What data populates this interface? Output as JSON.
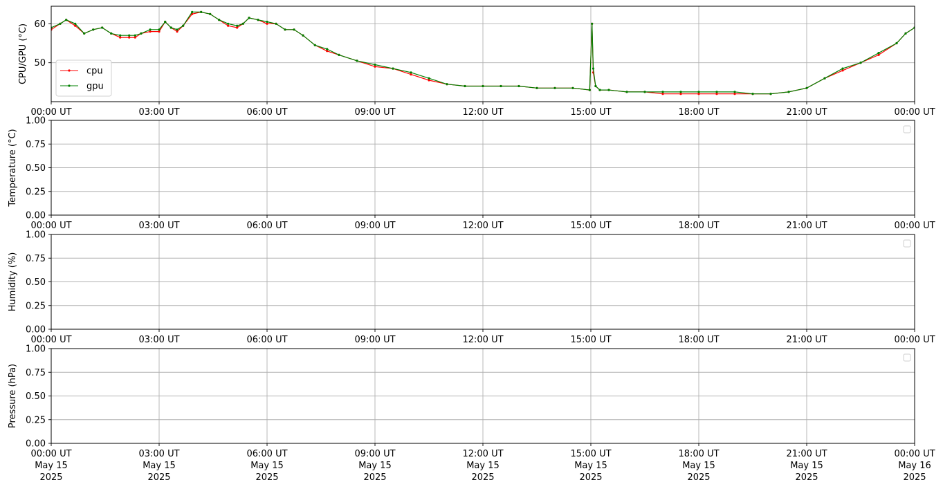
{
  "chart_data": [
    {
      "type": "line",
      "ylabel": "CPU/GPU (°C)",
      "xlim": [
        "00:00",
        "24:00"
      ],
      "ylim": [
        40,
        64.5
      ],
      "yticks": [
        50,
        60
      ],
      "x_tick_labels": [
        "00:00 UT",
        "03:00 UT",
        "06:00 UT",
        "09:00 UT",
        "12:00 UT",
        "15:00 UT",
        "18:00 UT",
        "21:00 UT",
        "00:00 UT"
      ],
      "grid": true,
      "legend": "lower-left",
      "series": [
        {
          "name": "cpu",
          "color": "#ff0000",
          "x": [
            "00:00",
            "00:15",
            "00:25",
            "00:40",
            "00:55",
            "01:10",
            "01:25",
            "01:40",
            "01:55",
            "02:10",
            "02:20",
            "02:30",
            "02:45",
            "03:00",
            "03:10",
            "03:20",
            "03:30",
            "03:40",
            "03:55",
            "04:10",
            "04:25",
            "04:40",
            "04:55",
            "05:10",
            "05:20",
            "05:30",
            "05:45",
            "06:00",
            "06:15",
            "06:30",
            "06:45",
            "07:00",
            "07:20",
            "07:40",
            "08:00",
            "08:30",
            "09:00",
            "09:30",
            "10:00",
            "10:30",
            "11:00",
            "11:30",
            "12:00",
            "12:30",
            "13:00",
            "13:30",
            "14:00",
            "14:30",
            "14:58",
            "15:02",
            "15:04",
            "15:08",
            "15:15",
            "15:30",
            "16:00",
            "16:30",
            "17:00",
            "17:30",
            "18:00",
            "18:30",
            "19:00",
            "19:30",
            "20:00",
            "20:30",
            "21:00",
            "21:30",
            "22:00",
            "22:30",
            "23:00",
            "23:30",
            "23:45",
            "24:00"
          ],
          "y": [
            58.5,
            60,
            61,
            59.5,
            57.5,
            58.5,
            59,
            57.5,
            56.5,
            56.5,
            56.5,
            57.5,
            58,
            58,
            60.5,
            59,
            58,
            59.5,
            62.5,
            63,
            62.5,
            61,
            59.5,
            59,
            60,
            61.5,
            61,
            60,
            60,
            58.5,
            58.5,
            57,
            54.5,
            53,
            52,
            50.5,
            49,
            48.5,
            47,
            45.5,
            44.5,
            44,
            44,
            44,
            44,
            43.5,
            43.5,
            43.5,
            43,
            60,
            47.5,
            44,
            43,
            43,
            42.5,
            42.5,
            42,
            42,
            42,
            42,
            42,
            42,
            42,
            42.5,
            43.5,
            46,
            48,
            50,
            52,
            55,
            57.5,
            59
          ]
        },
        {
          "name": "gpu",
          "color": "#008000",
          "x": [
            "00:00",
            "00:15",
            "00:25",
            "00:40",
            "00:55",
            "01:10",
            "01:25",
            "01:40",
            "01:55",
            "02:10",
            "02:20",
            "02:30",
            "02:45",
            "03:00",
            "03:10",
            "03:20",
            "03:30",
            "03:40",
            "03:55",
            "04:10",
            "04:25",
            "04:40",
            "04:55",
            "05:10",
            "05:20",
            "05:30",
            "05:45",
            "06:00",
            "06:15",
            "06:30",
            "06:45",
            "07:00",
            "07:20",
            "07:40",
            "08:00",
            "08:30",
            "09:00",
            "09:30",
            "10:00",
            "10:30",
            "11:00",
            "11:30",
            "12:00",
            "12:30",
            "13:00",
            "13:30",
            "14:00",
            "14:30",
            "14:58",
            "15:02",
            "15:04",
            "15:08",
            "15:15",
            "15:30",
            "16:00",
            "16:30",
            "17:00",
            "17:30",
            "18:00",
            "18:30",
            "19:00",
            "19:30",
            "20:00",
            "20:30",
            "21:00",
            "21:30",
            "22:00",
            "22:30",
            "23:00",
            "23:30",
            "23:45",
            "24:00"
          ],
          "y": [
            59,
            60,
            61,
            60,
            57.5,
            58.5,
            59,
            57.5,
            57,
            57,
            57,
            57.5,
            58.5,
            58.5,
            60.5,
            59,
            58.5,
            59.5,
            63,
            63,
            62.5,
            61,
            60,
            59.5,
            60,
            61.5,
            61,
            60.5,
            60,
            58.5,
            58.5,
            57,
            54.5,
            53.5,
            52,
            50.5,
            49.5,
            48.5,
            47.5,
            46,
            44.5,
            44,
            44,
            44,
            44,
            43.5,
            43.5,
            43.5,
            43,
            60,
            48.5,
            44,
            43,
            43,
            42.5,
            42.5,
            42.5,
            42.5,
            42.5,
            42.5,
            42.5,
            42,
            42,
            42.5,
            43.5,
            46,
            48.5,
            50,
            52.5,
            55,
            57.5,
            59
          ]
        }
      ]
    },
    {
      "type": "line",
      "ylabel": "Temperature (°C)",
      "ylim": [
        0,
        1
      ],
      "yticks": [
        "0.00",
        "0.25",
        "0.50",
        "0.75",
        "1.00"
      ],
      "x_tick_labels": [
        "00:00 UT",
        "03:00 UT",
        "06:00 UT",
        "09:00 UT",
        "12:00 UT",
        "15:00 UT",
        "18:00 UT",
        "21:00 UT",
        "00:00 UT"
      ],
      "grid": true,
      "legend": "top-right",
      "series": []
    },
    {
      "type": "line",
      "ylabel": "Humidity (%)",
      "ylim": [
        0,
        1
      ],
      "yticks": [
        "0.00",
        "0.25",
        "0.50",
        "0.75",
        "1.00"
      ],
      "x_tick_labels": [
        "00:00 UT",
        "03:00 UT",
        "06:00 UT",
        "09:00 UT",
        "12:00 UT",
        "15:00 UT",
        "18:00 UT",
        "21:00 UT",
        "00:00 UT"
      ],
      "grid": true,
      "legend": "top-right",
      "series": []
    },
    {
      "type": "line",
      "ylabel": "Pressure (hPa)",
      "ylim": [
        0,
        1
      ],
      "yticks": [
        "0.00",
        "0.25",
        "0.50",
        "0.75",
        "1.00"
      ],
      "x_tick_labels": [
        "00:00 UT",
        "03:00 UT",
        "06:00 UT",
        "09:00 UT",
        "12:00 UT",
        "15:00 UT",
        "18:00 UT",
        "21:00 UT",
        "00:00 UT"
      ],
      "x_tick_dates": [
        "May 15",
        "May 15",
        "May 15",
        "May 15",
        "May 15",
        "May 15",
        "May 15",
        "May 15",
        "May 16"
      ],
      "x_tick_years": [
        "2025",
        "2025",
        "2025",
        "2025",
        "2025",
        "2025",
        "2025",
        "2025",
        "2025"
      ],
      "grid": true,
      "legend": "top-right",
      "series": []
    }
  ]
}
